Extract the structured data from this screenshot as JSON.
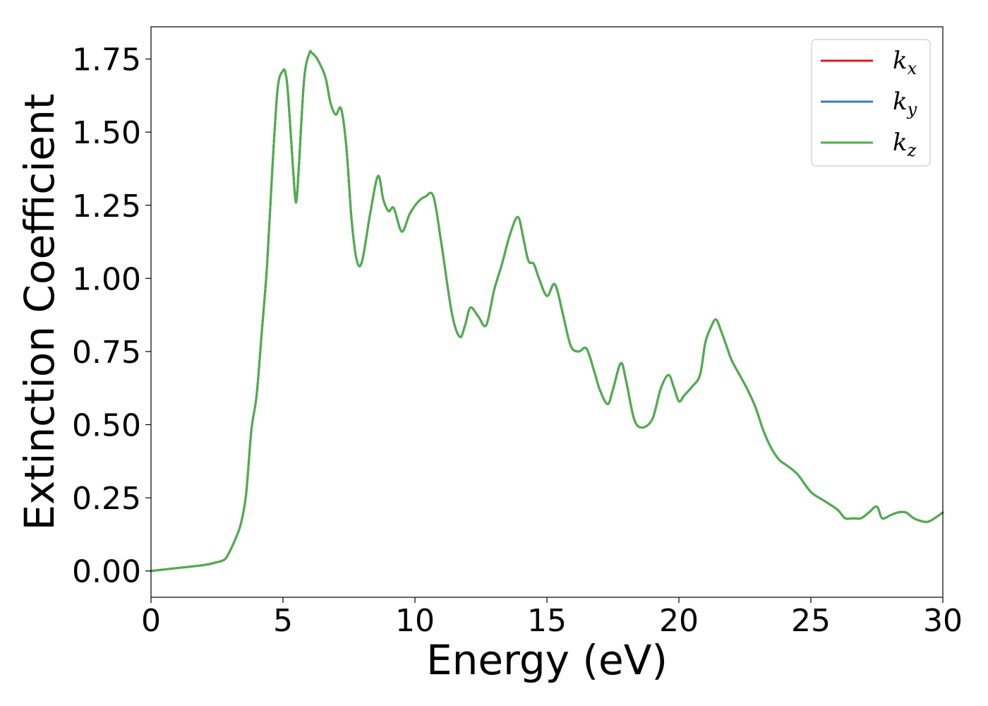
{
  "chart_data": {
    "type": "line",
    "title": "",
    "xlabel": "Energy (eV)",
    "ylabel": "Extinction Coefficient",
    "xlim": [
      0,
      30
    ],
    "ylim": [
      -0.09,
      1.86
    ],
    "xticks": [
      0,
      5,
      10,
      15,
      20,
      25,
      30
    ],
    "xtick_labels": [
      "0",
      "5",
      "10",
      "15",
      "20",
      "25",
      "30"
    ],
    "yticks": [
      0.0,
      0.25,
      0.5,
      0.75,
      1.0,
      1.25,
      1.5,
      1.75
    ],
    "ytick_labels": [
      "0.00",
      "0.25",
      "0.50",
      "0.75",
      "1.00",
      "1.25",
      "1.50",
      "1.75"
    ],
    "grid": false,
    "legend_position": "top-right",
    "series": [
      {
        "name": "k_x",
        "label_main": "k",
        "label_sub": "x",
        "color": "#e41a1c",
        "x": [
          0,
          1,
          2,
          2.5,
          2.8,
          3.0,
          3.2,
          3.4,
          3.6,
          3.8,
          4.0,
          4.2,
          4.4,
          4.6,
          4.8,
          5.0,
          5.1,
          5.2,
          5.4,
          5.5,
          5.6,
          5.8,
          6.0,
          6.1,
          6.3,
          6.6,
          6.8,
          7.0,
          7.2,
          7.4,
          7.6,
          7.8,
          8.0,
          8.3,
          8.6,
          8.8,
          9.0,
          9.2,
          9.5,
          9.8,
          10.1,
          10.4,
          10.7,
          11.0,
          11.4,
          11.7,
          11.9,
          12.1,
          12.4,
          12.7,
          13.0,
          13.3,
          13.6,
          13.9,
          14.1,
          14.3,
          14.5,
          14.7,
          15.0,
          15.3,
          15.6,
          15.9,
          16.2,
          16.5,
          16.8,
          17.0,
          17.3,
          17.5,
          17.8,
          18.0,
          18.3,
          18.6,
          19.0,
          19.3,
          19.6,
          19.8,
          20.0,
          20.2,
          20.5,
          20.8,
          21.0,
          21.2,
          21.4,
          21.6,
          21.8,
          22.0,
          22.3,
          22.6,
          22.9,
          23.2,
          23.5,
          23.8,
          24.1,
          24.5,
          25.0,
          25.5,
          26.0,
          26.3,
          26.6,
          26.9,
          27.2,
          27.5,
          27.7,
          28.0,
          28.3,
          28.6,
          28.9,
          29.2,
          29.5,
          30.0
        ],
        "y": [
          0.0,
          0.01,
          0.02,
          0.03,
          0.04,
          0.07,
          0.11,
          0.16,
          0.26,
          0.48,
          0.6,
          0.82,
          1.05,
          1.38,
          1.65,
          1.71,
          1.7,
          1.62,
          1.35,
          1.26,
          1.38,
          1.68,
          1.77,
          1.77,
          1.75,
          1.69,
          1.6,
          1.56,
          1.58,
          1.45,
          1.2,
          1.06,
          1.06,
          1.22,
          1.35,
          1.27,
          1.23,
          1.24,
          1.16,
          1.22,
          1.26,
          1.28,
          1.28,
          1.12,
          0.88,
          0.8,
          0.84,
          0.9,
          0.87,
          0.84,
          0.96,
          1.05,
          1.15,
          1.21,
          1.14,
          1.06,
          1.05,
          1.0,
          0.94,
          0.98,
          0.88,
          0.77,
          0.75,
          0.76,
          0.68,
          0.62,
          0.57,
          0.62,
          0.71,
          0.65,
          0.52,
          0.49,
          0.52,
          0.62,
          0.67,
          0.63,
          0.58,
          0.6,
          0.63,
          0.67,
          0.78,
          0.83,
          0.86,
          0.82,
          0.77,
          0.72,
          0.67,
          0.62,
          0.56,
          0.48,
          0.42,
          0.38,
          0.36,
          0.33,
          0.27,
          0.24,
          0.21,
          0.18,
          0.18,
          0.18,
          0.2,
          0.22,
          0.18,
          0.19,
          0.2,
          0.2,
          0.18,
          0.17,
          0.17,
          0.2
        ]
      },
      {
        "name": "k_y",
        "label_main": "k",
        "label_sub": "y",
        "color": "#377eb8",
        "x": [
          0,
          1,
          2,
          2.5,
          2.8,
          3.0,
          3.2,
          3.4,
          3.6,
          3.8,
          4.0,
          4.2,
          4.4,
          4.6,
          4.8,
          5.0,
          5.1,
          5.2,
          5.4,
          5.5,
          5.6,
          5.8,
          6.0,
          6.1,
          6.3,
          6.6,
          6.8,
          7.0,
          7.2,
          7.4,
          7.6,
          7.8,
          8.0,
          8.3,
          8.6,
          8.8,
          9.0,
          9.2,
          9.5,
          9.8,
          10.1,
          10.4,
          10.7,
          11.0,
          11.4,
          11.7,
          11.9,
          12.1,
          12.4,
          12.7,
          13.0,
          13.3,
          13.6,
          13.9,
          14.1,
          14.3,
          14.5,
          14.7,
          15.0,
          15.3,
          15.6,
          15.9,
          16.2,
          16.5,
          16.8,
          17.0,
          17.3,
          17.5,
          17.8,
          18.0,
          18.3,
          18.6,
          19.0,
          19.3,
          19.6,
          19.8,
          20.0,
          20.2,
          20.5,
          20.8,
          21.0,
          21.2,
          21.4,
          21.6,
          21.8,
          22.0,
          22.3,
          22.6,
          22.9,
          23.2,
          23.5,
          23.8,
          24.1,
          24.5,
          25.0,
          25.5,
          26.0,
          26.3,
          26.6,
          26.9,
          27.2,
          27.5,
          27.7,
          28.0,
          28.3,
          28.6,
          28.9,
          29.2,
          29.5,
          30.0
        ],
        "y": [
          0.0,
          0.01,
          0.02,
          0.03,
          0.04,
          0.07,
          0.11,
          0.16,
          0.26,
          0.48,
          0.6,
          0.82,
          1.05,
          1.38,
          1.65,
          1.71,
          1.7,
          1.62,
          1.35,
          1.26,
          1.38,
          1.68,
          1.77,
          1.77,
          1.75,
          1.69,
          1.6,
          1.56,
          1.58,
          1.45,
          1.2,
          1.06,
          1.06,
          1.22,
          1.35,
          1.27,
          1.23,
          1.24,
          1.16,
          1.22,
          1.26,
          1.28,
          1.28,
          1.12,
          0.88,
          0.8,
          0.84,
          0.9,
          0.87,
          0.84,
          0.96,
          1.05,
          1.15,
          1.21,
          1.14,
          1.06,
          1.05,
          1.0,
          0.94,
          0.98,
          0.88,
          0.77,
          0.75,
          0.76,
          0.68,
          0.62,
          0.57,
          0.62,
          0.71,
          0.65,
          0.52,
          0.49,
          0.52,
          0.62,
          0.67,
          0.63,
          0.58,
          0.6,
          0.63,
          0.67,
          0.78,
          0.83,
          0.86,
          0.82,
          0.77,
          0.72,
          0.67,
          0.62,
          0.56,
          0.48,
          0.42,
          0.38,
          0.36,
          0.33,
          0.27,
          0.24,
          0.21,
          0.18,
          0.18,
          0.18,
          0.2,
          0.22,
          0.18,
          0.19,
          0.2,
          0.2,
          0.18,
          0.17,
          0.17,
          0.2
        ]
      },
      {
        "name": "k_z",
        "label_main": "k",
        "label_sub": "z",
        "color": "#4daf4a",
        "x": [
          0,
          1,
          2,
          2.5,
          2.8,
          3.0,
          3.2,
          3.4,
          3.6,
          3.8,
          4.0,
          4.2,
          4.4,
          4.6,
          4.8,
          5.0,
          5.1,
          5.2,
          5.4,
          5.5,
          5.6,
          5.8,
          6.0,
          6.1,
          6.3,
          6.6,
          6.8,
          7.0,
          7.2,
          7.4,
          7.6,
          7.8,
          8.0,
          8.3,
          8.6,
          8.8,
          9.0,
          9.2,
          9.5,
          9.8,
          10.1,
          10.4,
          10.7,
          11.0,
          11.4,
          11.7,
          11.9,
          12.1,
          12.4,
          12.7,
          13.0,
          13.3,
          13.6,
          13.9,
          14.1,
          14.3,
          14.5,
          14.7,
          15.0,
          15.3,
          15.6,
          15.9,
          16.2,
          16.5,
          16.8,
          17.0,
          17.3,
          17.5,
          17.8,
          18.0,
          18.3,
          18.6,
          19.0,
          19.3,
          19.6,
          19.8,
          20.0,
          20.2,
          20.5,
          20.8,
          21.0,
          21.2,
          21.4,
          21.6,
          21.8,
          22.0,
          22.3,
          22.6,
          22.9,
          23.2,
          23.5,
          23.8,
          24.1,
          24.5,
          25.0,
          25.5,
          26.0,
          26.3,
          26.6,
          26.9,
          27.2,
          27.5,
          27.7,
          28.0,
          28.3,
          28.6,
          28.9,
          29.2,
          29.5,
          30.0
        ],
        "y": [
          0.0,
          0.01,
          0.02,
          0.03,
          0.04,
          0.07,
          0.11,
          0.16,
          0.26,
          0.48,
          0.6,
          0.82,
          1.05,
          1.38,
          1.65,
          1.71,
          1.7,
          1.62,
          1.35,
          1.26,
          1.38,
          1.68,
          1.77,
          1.77,
          1.75,
          1.69,
          1.6,
          1.56,
          1.58,
          1.45,
          1.2,
          1.06,
          1.06,
          1.22,
          1.35,
          1.27,
          1.23,
          1.24,
          1.16,
          1.22,
          1.26,
          1.28,
          1.28,
          1.12,
          0.88,
          0.8,
          0.84,
          0.9,
          0.87,
          0.84,
          0.96,
          1.05,
          1.15,
          1.21,
          1.14,
          1.06,
          1.05,
          1.0,
          0.94,
          0.98,
          0.88,
          0.77,
          0.75,
          0.76,
          0.68,
          0.62,
          0.57,
          0.62,
          0.71,
          0.65,
          0.52,
          0.49,
          0.52,
          0.62,
          0.67,
          0.63,
          0.58,
          0.6,
          0.63,
          0.67,
          0.78,
          0.83,
          0.86,
          0.82,
          0.77,
          0.72,
          0.67,
          0.62,
          0.56,
          0.48,
          0.42,
          0.38,
          0.36,
          0.33,
          0.27,
          0.24,
          0.21,
          0.18,
          0.18,
          0.18,
          0.2,
          0.22,
          0.18,
          0.19,
          0.2,
          0.2,
          0.18,
          0.17,
          0.17,
          0.2
        ]
      }
    ]
  }
}
